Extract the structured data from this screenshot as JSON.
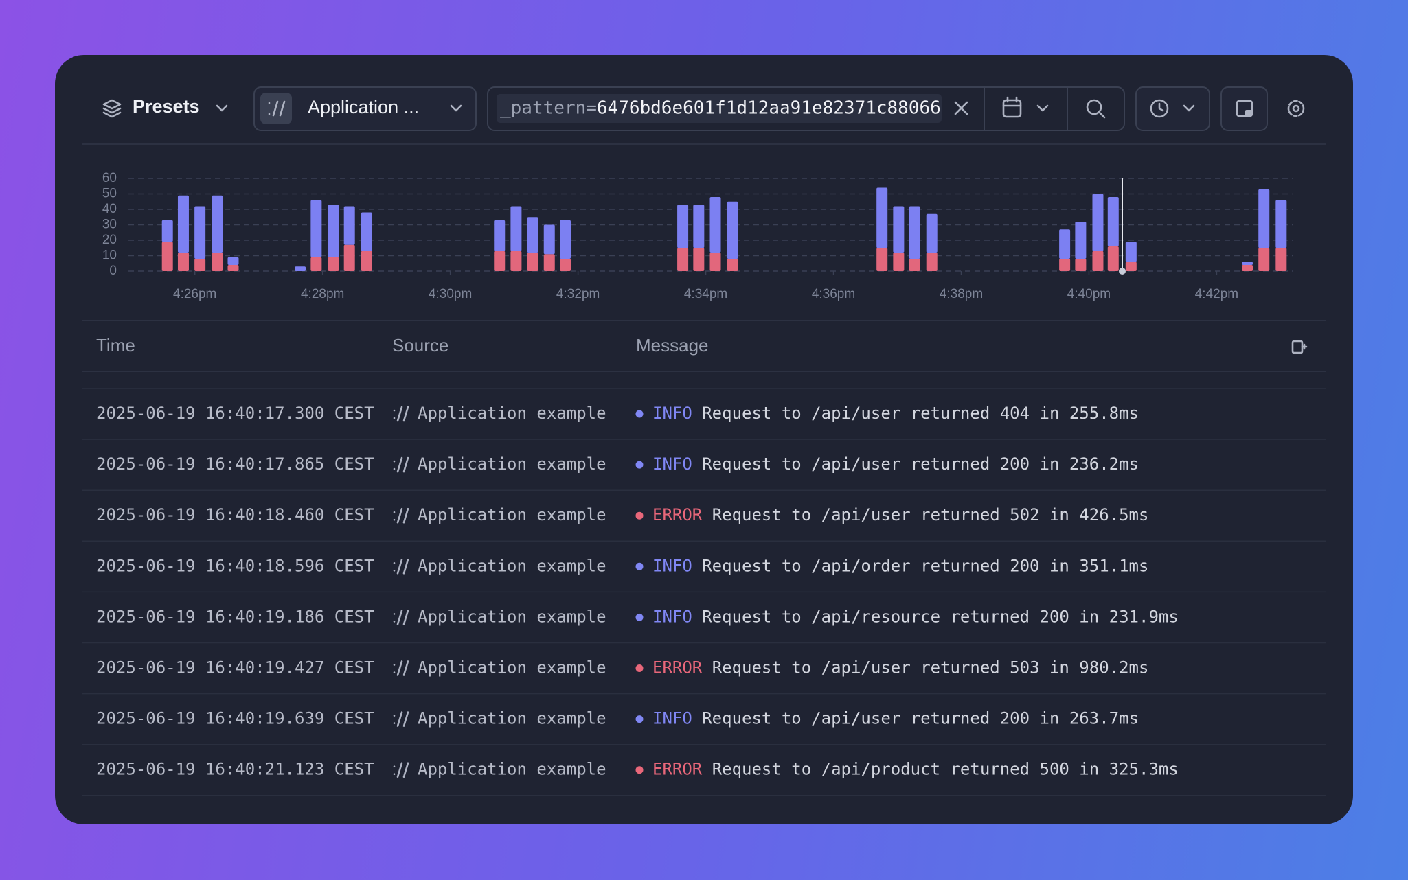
{
  "toolbar": {
    "preset": "Presets",
    "source": "Application ...",
    "query_key": "_pattern=",
    "query_value": "6476bd6e601f1d12aa91e82371c88066"
  },
  "chart_data": {
    "type": "bar",
    "stacked": true,
    "x": [
      985.57,
      985.82,
      986.08,
      986.35,
      986.6,
      987.65,
      987.9,
      988.17,
      988.42,
      988.69,
      990.77,
      991.03,
      991.29,
      991.55,
      991.8,
      993.64,
      993.89,
      994.15,
      994.42,
      996.76,
      997.02,
      997.27,
      997.54,
      999.62,
      999.87,
      1000.14,
      1000.38,
      1000.66,
      1002.48,
      1002.74,
      1003.01
    ],
    "series": [
      {
        "color": "#e2677c",
        "values": [
          19,
          12,
          8,
          12,
          4,
          0,
          9,
          9,
          17,
          13,
          13,
          13,
          12,
          11,
          8,
          15,
          15,
          12,
          8,
          15,
          12,
          8,
          12,
          8,
          8,
          13,
          16,
          6,
          4,
          15,
          15
        ]
      },
      {
        "color": "#7c80f2",
        "values": [
          14,
          37,
          34,
          37,
          5,
          3,
          37,
          34,
          25,
          25,
          20,
          29,
          23,
          19,
          25,
          28,
          28,
          36,
          37,
          39,
          30,
          34,
          25,
          19,
          24,
          37,
          32,
          13,
          2,
          38,
          31
        ]
      }
    ],
    "xlim": [
      984.96,
      1003.2
    ],
    "xticks": [
      {
        "value": 986,
        "label": "4:26pm"
      },
      {
        "value": 988,
        "label": "4:28pm"
      },
      {
        "value": 990,
        "label": "4:30pm"
      },
      {
        "value": 992,
        "label": "4:32pm"
      },
      {
        "value": 994,
        "label": "4:34pm"
      },
      {
        "value": 996,
        "label": "4:36pm"
      },
      {
        "value": 998,
        "label": "4:38pm"
      },
      {
        "value": 1000,
        "label": "4:40pm"
      },
      {
        "value": 1002,
        "label": "4:42pm"
      }
    ],
    "ylim": [
      0,
      60
    ],
    "yticks": [
      0,
      10,
      20,
      30,
      40,
      50,
      60
    ],
    "grid": true
  },
  "table": {
    "columns": [
      "Time",
      "Source",
      "Message"
    ],
    "level_colors": {
      "INFO": "#8087f4",
      "ERROR": "#e8677a"
    },
    "rows": [
      {
        "time": "2025-06-19 16:40:17.300 CEST",
        "source": "Application example",
        "level": "INFO",
        "message": "Request to /api/user returned 404 in 255.8ms"
      },
      {
        "time": "2025-06-19 16:40:17.865 CEST",
        "source": "Application example",
        "level": "INFO",
        "message": "Request to /api/user returned 200 in 236.2ms"
      },
      {
        "time": "2025-06-19 16:40:18.460 CEST",
        "source": "Application example",
        "level": "ERROR",
        "message": "Request to /api/user returned 502 in 426.5ms"
      },
      {
        "time": "2025-06-19 16:40:18.596 CEST",
        "source": "Application example",
        "level": "INFO",
        "message": "Request to /api/order returned 200 in 351.1ms"
      },
      {
        "time": "2025-06-19 16:40:19.186 CEST",
        "source": "Application example",
        "level": "INFO",
        "message": "Request to /api/resource returned 200 in 231.9ms"
      },
      {
        "time": "2025-06-19 16:40:19.427 CEST",
        "source": "Application example",
        "level": "ERROR",
        "message": "Request to /api/user returned 503 in 980.2ms"
      },
      {
        "time": "2025-06-19 16:40:19.639 CEST",
        "source": "Application example",
        "level": "INFO",
        "message": "Request to /api/user returned 200 in 263.7ms"
      },
      {
        "time": "2025-06-19 16:40:21.123 CEST",
        "source": "Application example",
        "level": "ERROR",
        "message": "Request to /api/product returned 500 in 325.3ms"
      }
    ]
  }
}
